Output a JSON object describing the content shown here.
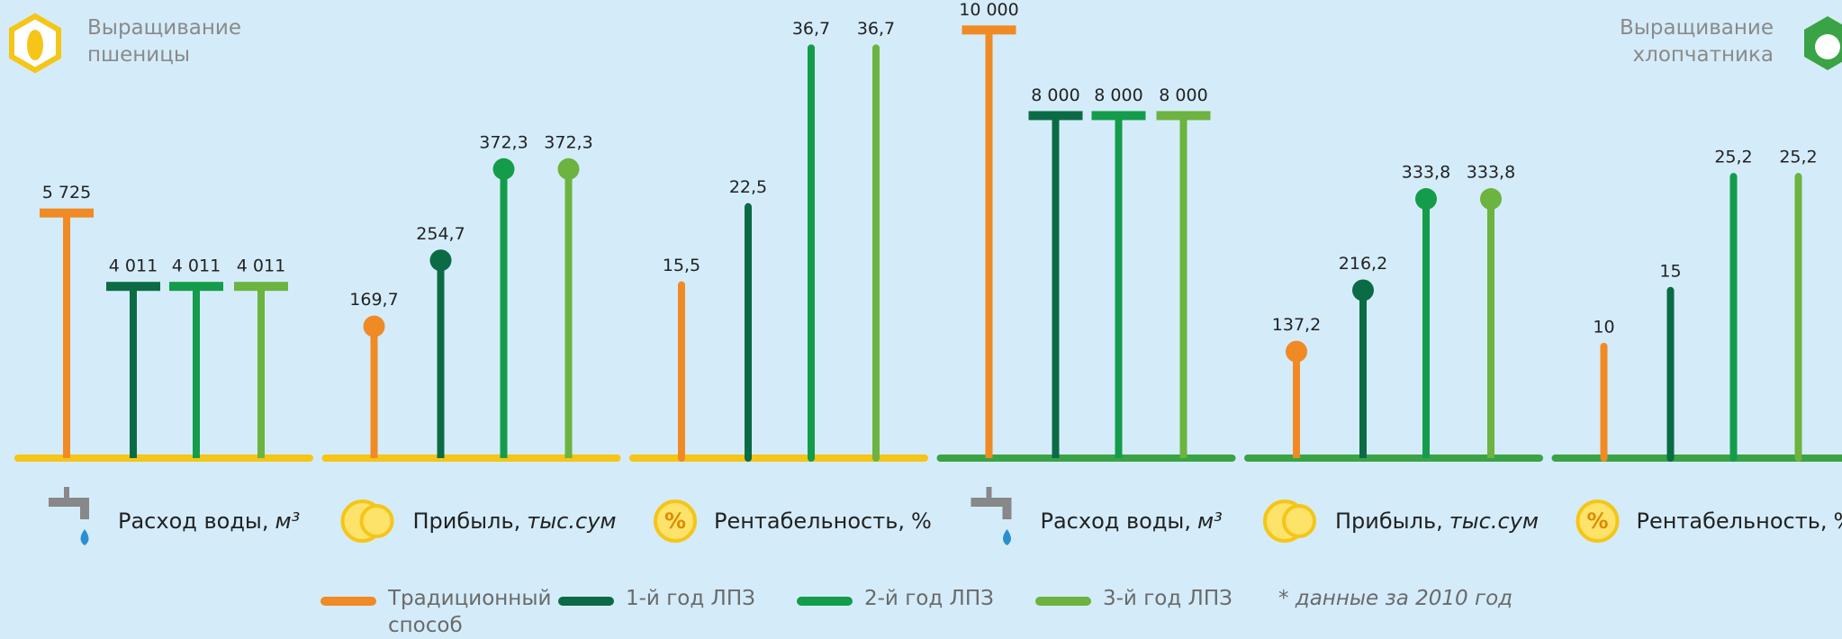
{
  "sections": [
    {
      "title": "Выращивание пшеницы",
      "color": "#f5c518"
    },
    {
      "title": "Выращивание хлопчатника",
      "color": "#3aa346"
    }
  ],
  "legend": [
    {
      "name": "Традиционный способ",
      "color": "#f08a24"
    },
    {
      "name": "1-й год ЛПЗ",
      "color": "#0b6b45"
    },
    {
      "name": "2-й год ЛПЗ",
      "color": "#149c4a"
    },
    {
      "name": "3-й год ЛПЗ",
      "color": "#6cb33f"
    }
  ],
  "note": "* данные за 2010 год",
  "chart_data": [
    {
      "type": "cap",
      "section": 0,
      "label": "Расход воды,",
      "unit": "м³",
      "unit_style": "italic",
      "values": [
        5725,
        4011,
        4011,
        4011
      ],
      "value_labels": [
        "5 725",
        "4 011",
        "4 011",
        "4 011"
      ],
      "ylim": [
        0,
        10700
      ]
    },
    {
      "type": "dot",
      "section": 0,
      "label": "Прибыль,",
      "unit": "тыс.сум",
      "unit_style": "italic",
      "values": [
        169.7,
        254.7,
        372.3,
        372.3
      ],
      "value_labels": [
        "169,7",
        "254,7",
        "372,3",
        "372,3"
      ],
      "ylim": [
        0,
        590
      ]
    },
    {
      "type": "stem",
      "section": 0,
      "label": "Рентабельность,",
      "unit": "%",
      "unit_style": "normal",
      "values": [
        15.5,
        22.5,
        36.7,
        36.7
      ],
      "value_labels": [
        "15,5",
        "22,5",
        "36,7",
        "36,7"
      ],
      "ylim": [
        0,
        41
      ]
    },
    {
      "type": "cap",
      "section": 1,
      "label": "Расход воды,",
      "unit": "м³",
      "unit_style": "italic",
      "values": [
        10000,
        8000,
        8000,
        8000
      ],
      "value_labels": [
        "10 000",
        "8 000",
        "8 000",
        "8 000"
      ],
      "ylim": [
        0,
        10700
      ]
    },
    {
      "type": "dot",
      "section": 1,
      "label": "Прибыль,",
      "unit": "тыс.сум",
      "unit_style": "italic",
      "values": [
        137.2,
        216.2,
        333.8,
        333.8
      ],
      "value_labels": [
        "137,2",
        "216,2",
        "333,8",
        "333,8"
      ],
      "ylim": [
        0,
        590
      ]
    },
    {
      "type": "stem",
      "section": 1,
      "label": "Рентабельность,",
      "unit": "%",
      "unit_style": "normal",
      "values": [
        10,
        15,
        25.2,
        25.2
      ],
      "value_labels": [
        "10",
        "15",
        "25,2",
        "25,2"
      ],
      "ylim": [
        0,
        41
      ]
    }
  ]
}
